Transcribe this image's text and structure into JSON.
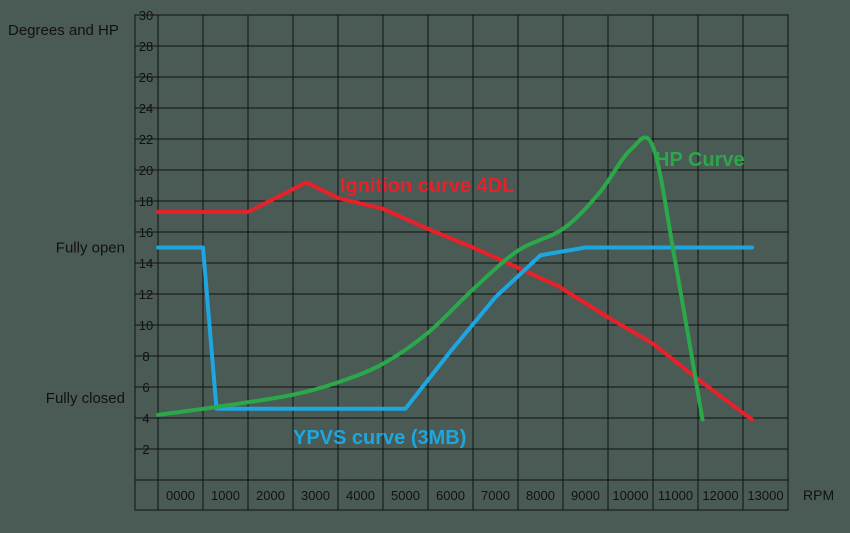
{
  "chart_data": {
    "type": "line",
    "title": "",
    "ylabel": "Degrees and HP",
    "xlabel": "RPM",
    "x_tick_labels": [
      "0000",
      "1000",
      "2000",
      "3000",
      "4000",
      "5000",
      "6000",
      "7000",
      "8000",
      "9000",
      "10000",
      "11000",
      "12000",
      "13000"
    ],
    "x_range": [
      0,
      13000
    ],
    "y_tick_labels": [
      "2",
      "4",
      "6",
      "8",
      "10",
      "12",
      "14",
      "16",
      "18",
      "20",
      "22",
      "24",
      "26",
      "28",
      "30"
    ],
    "y_range": [
      0,
      30
    ],
    "grid": true,
    "side_labels": [
      {
        "text": "Fully open",
        "y": 15
      },
      {
        "text": "Fully closed",
        "y": 5.5
      }
    ],
    "colors": {
      "background": "#4a5a55",
      "grid": "#111111",
      "text": "#111111"
    },
    "series": [
      {
        "name": "Ignition curve 4DL",
        "color": "#e8202a",
        "x": [
          0,
          2000,
          3300,
          4000,
          5000,
          6000,
          7000,
          8000,
          8900,
          10000,
          11000,
          12000,
          13200
        ],
        "y": [
          17.3,
          17.3,
          19.2,
          18.2,
          17.5,
          16.2,
          15,
          13.7,
          12.5,
          10.5,
          8.8,
          6.5,
          3.9
        ]
      },
      {
        "name": "YPVS curve (3MB)",
        "color": "#1ea6e0",
        "x": [
          0,
          1000,
          1300,
          5500,
          6500,
          7500,
          8500,
          9500,
          13200
        ],
        "y": [
          15,
          15,
          4.6,
          4.6,
          8.3,
          11.8,
          14.5,
          15,
          15
        ]
      },
      {
        "name": "HP Curve",
        "color": "#2aa84a",
        "x": [
          0,
          1500,
          3000,
          4000,
          5000,
          6000,
          7000,
          8000,
          9000,
          9800,
          10500,
          11000,
          11500,
          12100
        ],
        "y": [
          4.2,
          4.8,
          5.5,
          6.3,
          7.5,
          9.5,
          12.3,
          14.8,
          16.2,
          18.5,
          21.3,
          21.5,
          14,
          3.9
        ]
      }
    ]
  }
}
